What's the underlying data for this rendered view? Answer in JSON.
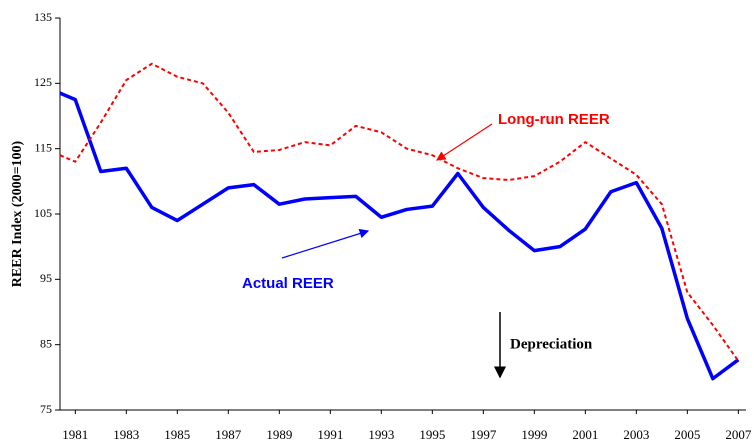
{
  "chart_data": {
    "type": "line",
    "y_label": "REER Index (2000=100)",
    "x": [
      1980.4,
      1981,
      1982,
      1983,
      1984,
      1985,
      1986,
      1987,
      1988,
      1989,
      1990,
      1991,
      1992,
      1993,
      1994,
      1995,
      1996,
      1997,
      1998,
      1999,
      2000,
      2001,
      2002,
      2003,
      2004,
      2005,
      2006,
      2007
    ],
    "series": [
      {
        "name": "Actual REER",
        "color": "#0000ff",
        "dashed": false,
        "values": [
          123.5,
          122.5,
          111.5,
          112,
          106,
          104,
          106.5,
          109,
          109.5,
          106.5,
          107.3,
          107.5,
          107.7,
          104.5,
          105.7,
          106.2,
          111.2,
          106,
          102.5,
          99.4,
          100,
          102.7,
          108.4,
          109.8,
          102.8,
          89,
          79.8,
          82.7
        ]
      },
      {
        "name": "Long-run REER",
        "color": "#ff0000",
        "dashed": true,
        "values": [
          114,
          113,
          119,
          125.5,
          128,
          126,
          125,
          120.5,
          114.5,
          114.8,
          116,
          115.5,
          118.5,
          117.5,
          115,
          114,
          112,
          110.5,
          110.2,
          110.8,
          113,
          116,
          113.5,
          111,
          106.5,
          93,
          88,
          82.5
        ]
      }
    ],
    "annotations": [
      "Depreciation"
    ],
    "xlim": [
      1980.4,
      2007.3
    ],
    "xticks": [
      1981,
      1983,
      1985,
      1987,
      1989,
      1991,
      1993,
      1995,
      1997,
      1999,
      2001,
      2003,
      2005,
      2007
    ],
    "ylim": [
      75,
      135
    ],
    "yticks": [
      75,
      85,
      95,
      105,
      115,
      125,
      135
    ],
    "grid": false
  }
}
